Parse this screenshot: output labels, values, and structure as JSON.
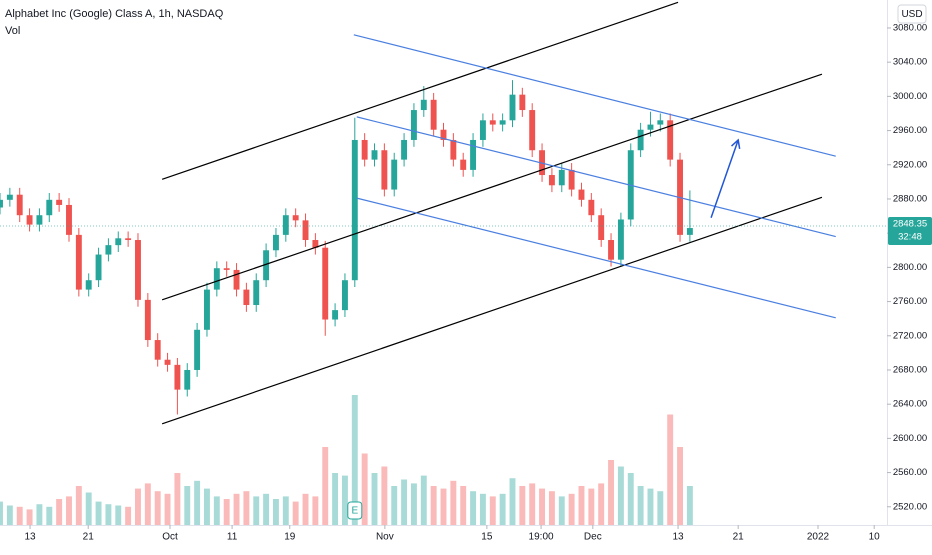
{
  "chart_data": {
    "type": "candlestick",
    "title": "Alphabet Inc (Google) Class A, 1h, NASDAQ",
    "volume_label": "Vol",
    "currency": "USD",
    "up_color": "#26a69a",
    "down_color": "#ef5350",
    "x": [
      0,
      2,
      4,
      6,
      8,
      10,
      12,
      14,
      16,
      18,
      20,
      22,
      24,
      26,
      28,
      30,
      32,
      34,
      36,
      38,
      40,
      42,
      44,
      46,
      48,
      50,
      52,
      54,
      56,
      58,
      60,
      62,
      64,
      66,
      68,
      70,
      72,
      74,
      76,
      78,
      80,
      82,
      84,
      86,
      88,
      90,
      92,
      94,
      96,
      98,
      100,
      102,
      104,
      106,
      108,
      110,
      112,
      114,
      116,
      118,
      120,
      122,
      124,
      126,
      128,
      130,
      132,
      134,
      136,
      138,
      140
    ],
    "open": [
      2870,
      2879,
      2885,
      2861,
      2850,
      2861,
      2879,
      2873,
      2838,
      2774,
      2785,
      2815,
      2826,
      2834,
      2832,
      2762,
      2715,
      2692,
      2686,
      2657,
      2680,
      2727,
      2774,
      2799,
      2797,
      2774,
      2756,
      2785,
      2820,
      2838,
      2861,
      2855,
      2832,
      2823,
      2739,
      2750,
      2785,
      2949,
      2926,
      2937,
      2891,
      2926,
      2949,
      2984,
      2996,
      2961,
      2949,
      2926,
      2914,
      2949,
      2972,
      2967,
      2972,
      3002,
      2984,
      2937,
      2908,
      2896,
      2914,
      2891,
      2879,
      2861,
      2832,
      2809,
      2856,
      2937,
      2961,
      2967,
      2972,
      2926,
      2838
    ],
    "high": [
      2887,
      2893,
      2893,
      2869,
      2869,
      2887,
      2887,
      2881,
      2846,
      2793,
      2823,
      2834,
      2842,
      2842,
      2840,
      2770,
      2723,
      2700,
      2694,
      2688,
      2735,
      2782,
      2807,
      2807,
      2805,
      2782,
      2793,
      2828,
      2846,
      2869,
      2869,
      2863,
      2840,
      2831,
      2758,
      2793,
      2975,
      2957,
      2945,
      2945,
      2934,
      2957,
      2992,
      3012,
      3004,
      2969,
      2957,
      2934,
      2957,
      2980,
      2980,
      2980,
      3019,
      3010,
      2992,
      2945,
      2916,
      2922,
      2922,
      2899,
      2887,
      2869,
      2840,
      2864,
      2945,
      2969,
      2982,
      2980,
      2980,
      2934,
      2890
    ],
    "low": [
      2862,
      2871,
      2853,
      2842,
      2842,
      2853,
      2865,
      2830,
      2766,
      2766,
      2777,
      2807,
      2818,
      2824,
      2754,
      2707,
      2684,
      2678,
      2628,
      2649,
      2672,
      2719,
      2766,
      2789,
      2766,
      2748,
      2748,
      2777,
      2812,
      2830,
      2847,
      2824,
      2815,
      2720,
      2731,
      2742,
      2777,
      2918,
      2918,
      2883,
      2883,
      2918,
      2941,
      2976,
      2953,
      2941,
      2918,
      2906,
      2906,
      2941,
      2959,
      2959,
      2964,
      2976,
      2929,
      2900,
      2888,
      2888,
      2883,
      2871,
      2853,
      2824,
      2801,
      2801,
      2848,
      2929,
      2953,
      2959,
      2918,
      2830,
      2830
    ],
    "close": [
      2879,
      2885,
      2861,
      2850,
      2861,
      2879,
      2873,
      2838,
      2774,
      2785,
      2815,
      2826,
      2834,
      2832,
      2762,
      2715,
      2692,
      2686,
      2657,
      2680,
      2727,
      2774,
      2799,
      2797,
      2774,
      2756,
      2785,
      2820,
      2838,
      2861,
      2855,
      2832,
      2823,
      2739,
      2750,
      2785,
      2949,
      2926,
      2937,
      2891,
      2926,
      2949,
      2984,
      2996,
      2961,
      2949,
      2926,
      2914,
      2949,
      2972,
      2967,
      2972,
      3002,
      2984,
      2937,
      2908,
      2896,
      2914,
      2891,
      2879,
      2861,
      2832,
      2809,
      2856,
      2937,
      2961,
      2967,
      2972,
      2926,
      2838,
      2846
    ],
    "volume": [
      18,
      15,
      14,
      12,
      16,
      14,
      20,
      22,
      30,
      25,
      18,
      16,
      15,
      14,
      28,
      32,
      26,
      24,
      40,
      30,
      34,
      28,
      22,
      20,
      24,
      26,
      22,
      24,
      20,
      22,
      18,
      24,
      22,
      60,
      40,
      38,
      100,
      55,
      40,
      45,
      30,
      35,
      32,
      38,
      30,
      28,
      34,
      30,
      26,
      24,
      22,
      24,
      36,
      30,
      32,
      28,
      26,
      22,
      24,
      30,
      28,
      32,
      50,
      45,
      40,
      30,
      28,
      26,
      85,
      60,
      30
    ],
    "xlim": [
      0,
      180
    ],
    "ylim": [
      2498.7,
      3112.7
    ],
    "yticks": [
      {
        "value": 2520,
        "label": "2520.00"
      },
      {
        "value": 2560,
        "label": "2560.00"
      },
      {
        "value": 2600,
        "label": "2600.00"
      },
      {
        "value": 2640,
        "label": "2640.00"
      },
      {
        "value": 2680,
        "label": "2680.00"
      },
      {
        "value": 2720,
        "label": "2720.00"
      },
      {
        "value": 2760,
        "label": "2760.00"
      },
      {
        "value": 2800,
        "label": "2800.00"
      },
      {
        "value": 2840,
        "label": "2840.00"
      },
      {
        "value": 2880,
        "label": "2880.00"
      },
      {
        "value": 2920,
        "label": "2920.00"
      },
      {
        "value": 2960,
        "label": "2960.00"
      },
      {
        "value": 3000,
        "label": "3000.00"
      },
      {
        "value": 3040,
        "label": "3040.00"
      },
      {
        "value": 3080,
        "label": "3080.00"
      }
    ],
    "xticks": [
      {
        "value": 6.1,
        "label": "13"
      },
      {
        "value": 17.9,
        "label": "21"
      },
      {
        "value": 34.5,
        "label": "Oct"
      },
      {
        "value": 47.1,
        "label": "11"
      },
      {
        "value": 58.8,
        "label": "19"
      },
      {
        "value": 78.1,
        "label": "Nov"
      },
      {
        "value": 98.8,
        "label": "15"
      },
      {
        "value": 109.8,
        "label": "19:00"
      },
      {
        "value": 120.3,
        "label": "Dec"
      },
      {
        "value": 137.6,
        "label": "13"
      },
      {
        "value": 149.8,
        "label": "21"
      },
      {
        "value": 166,
        "label": "2022"
      },
      {
        "value": 177.4,
        "label": "10"
      }
    ],
    "last_price": 2848.35,
    "countdown": "32:48",
    "events": [
      {
        "x": 72,
        "label": "E"
      }
    ],
    "trend_lines": [
      {
        "color": "#000000",
        "x": [
          32.9,
          137.6
        ],
        "y": [
          2903,
          3110
        ]
      },
      {
        "color": "#000000",
        "x": [
          32.9,
          166.8
        ],
        "y": [
          2762,
          3026
        ]
      },
      {
        "color": "#000000",
        "x": [
          32.9,
          166.8
        ],
        "y": [
          2617,
          2882
        ]
      },
      {
        "color": "#4a7fe0",
        "x": [
          71.8,
          169.6
        ],
        "y": [
          3072,
          2930
        ]
      },
      {
        "color": "#4a7fe0",
        "x": [
          72.4,
          169.6
        ],
        "y": [
          2976,
          2836
        ]
      },
      {
        "color": "#4a7fe0",
        "x": [
          72.4,
          169.6
        ],
        "y": [
          2881,
          2741
        ]
      }
    ],
    "arrow": {
      "color": "#2156d6",
      "x": [
        144.3,
        149.8
      ],
      "y": [
        2858,
        2949
      ]
    }
  }
}
